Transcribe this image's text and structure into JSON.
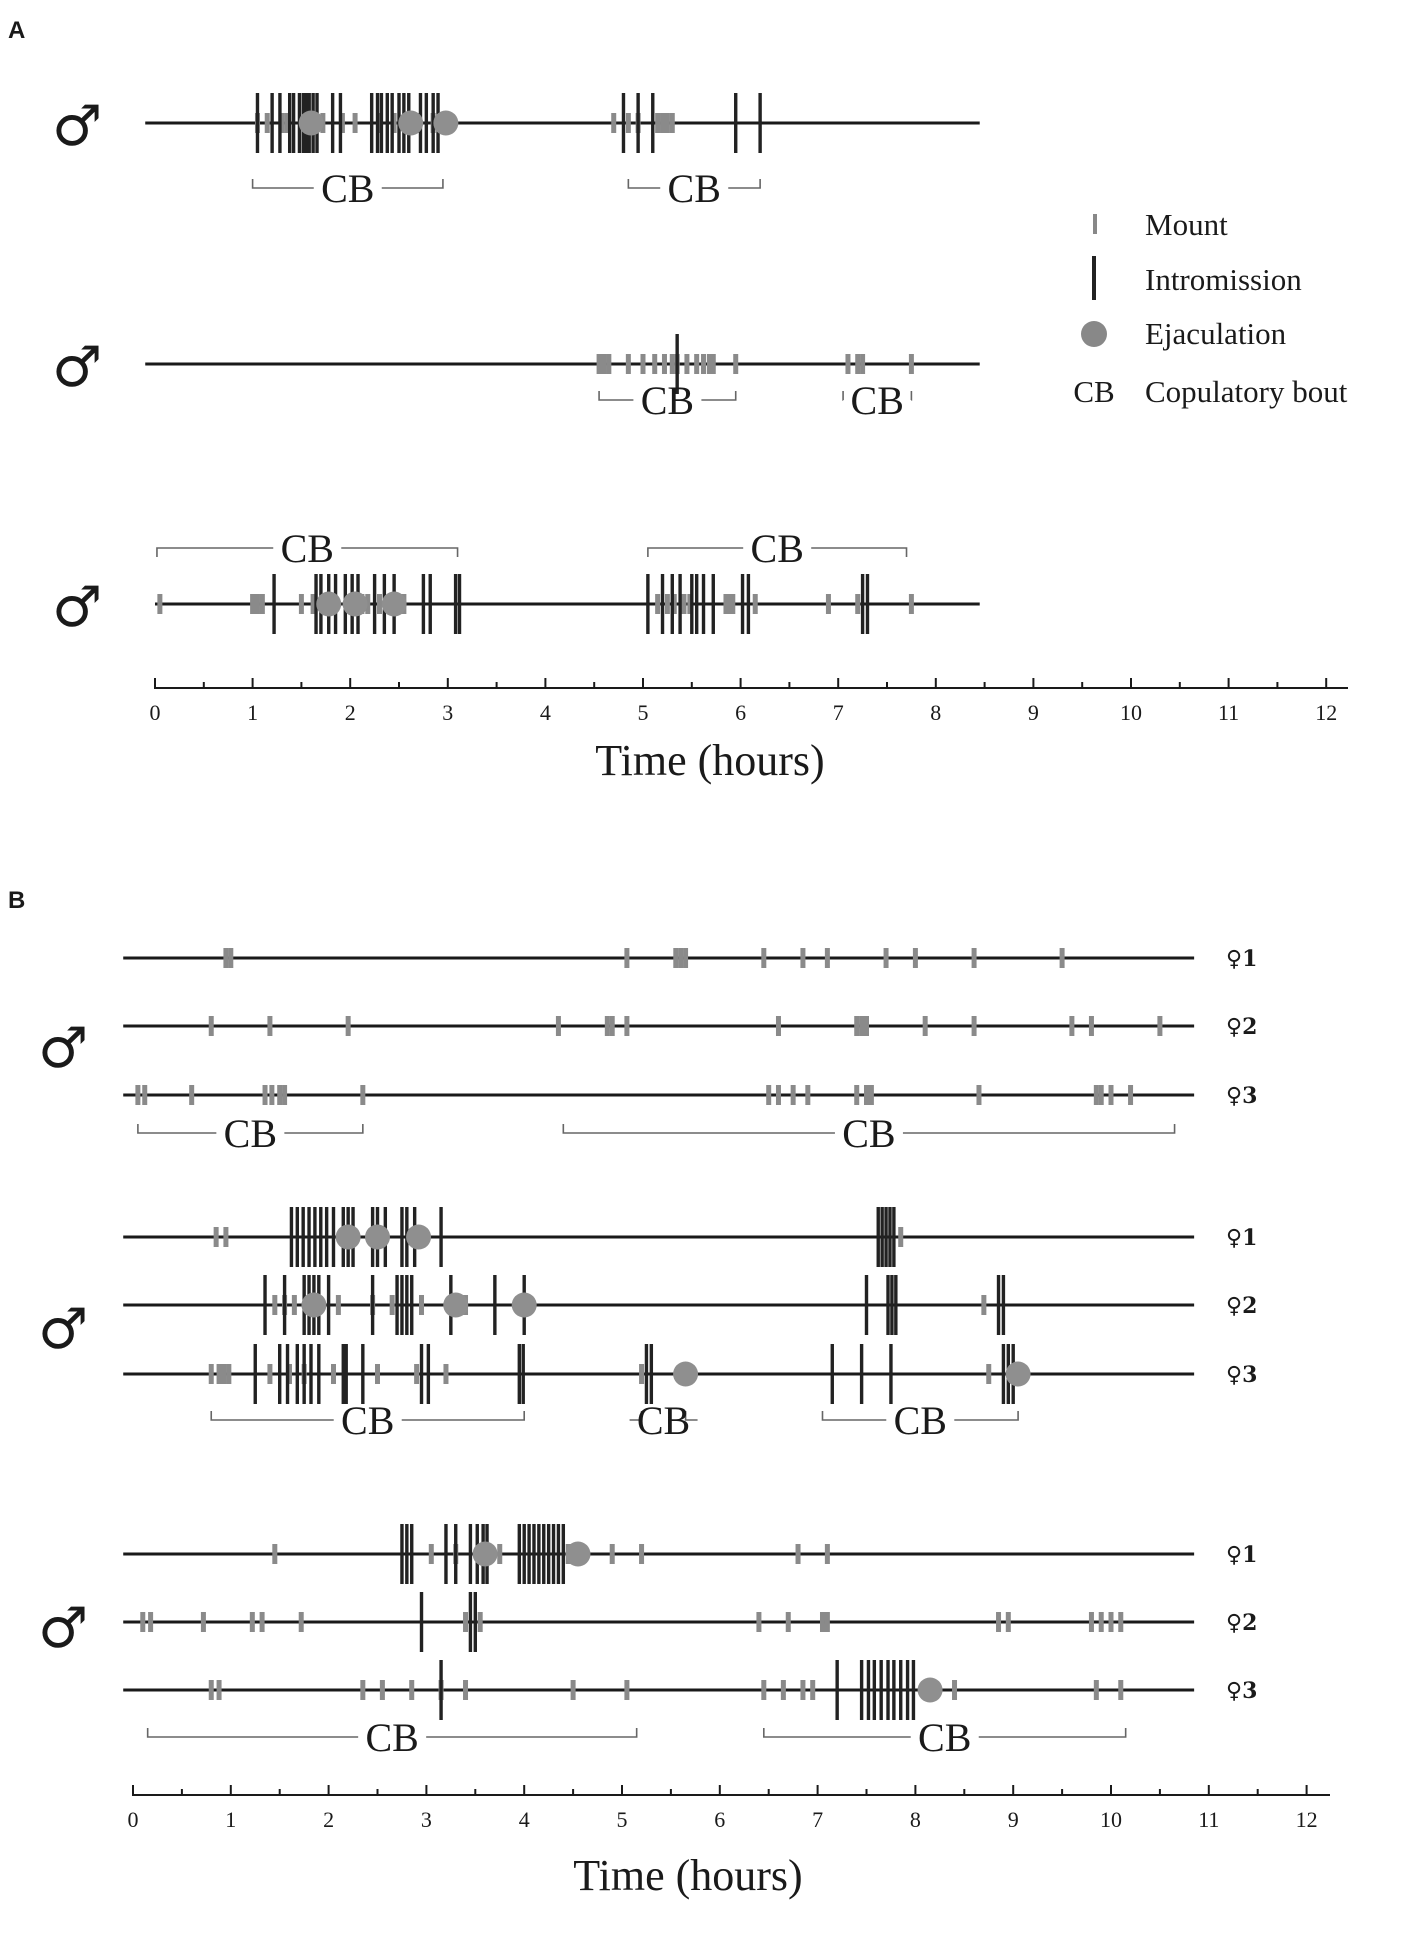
{
  "chart_data": {
    "type": "scatter",
    "xlabel": "Time (hours)",
    "legend": {
      "placement": "right",
      "items": [
        {
          "symbol": "Mount",
          "label": "Mount",
          "mark": "short-tick",
          "color": "#888888"
        },
        {
          "symbol": "Intromission",
          "label": "Intromission",
          "mark": "long-bar",
          "color": "#222222"
        },
        {
          "symbol": "Ejaculation",
          "label": "Ejaculation",
          "mark": "circle",
          "color": "#888888"
        },
        {
          "symbol": "CB",
          "label": "Copulatory bout",
          "mark": "bracket",
          "color": "#555555"
        }
      ]
    },
    "panels": [
      {
        "label": "A",
        "xlim": [
          0,
          12
        ],
        "xticks": [
          0,
          1,
          2,
          3,
          4,
          5,
          6,
          7,
          8,
          9,
          10,
          11,
          12
        ],
        "xlabel": "Time (hours)",
        "rows": [
          {
            "male": "♂",
            "female": "",
            "line": [
              -0.1,
              8.45
            ],
            "mounts": [
              1.05,
              1.15,
              1.3,
              1.35,
              1.72,
              1.92,
              2.05,
              2.3,
              2.45,
              2.7,
              2.85,
              2.95,
              4.7,
              4.85,
              4.95,
              5.15,
              5.2,
              5.25,
              5.3
            ],
            "intromissions": [
              1.05,
              1.2,
              1.28,
              1.38,
              1.42,
              1.48,
              1.52,
              1.55,
              1.58,
              1.62,
              1.66,
              1.82,
              1.9,
              2.22,
              2.28,
              2.32,
              2.38,
              2.43,
              2.5,
              2.55,
              2.6,
              2.72,
              2.78,
              2.85,
              2.9,
              4.8,
              4.95,
              5.1,
              5.95,
              6.2
            ],
            "ejaculations": [
              1.6,
              2.62,
              2.98
            ],
            "bouts": [
              {
                "start": 1.0,
                "end": 2.95
              },
              {
                "start": 4.85,
                "end": 6.2
              }
            ]
          },
          {
            "male": "♂",
            "female": "",
            "line": [
              -0.1,
              8.45
            ],
            "mounts": [
              4.55,
              4.6,
              4.65,
              4.85,
              5.0,
              5.12,
              5.22,
              5.3,
              5.35,
              5.45,
              5.55,
              5.62,
              5.68,
              5.72,
              5.95,
              7.1,
              7.2,
              7.25,
              7.75
            ],
            "intromissions": [
              5.35
            ],
            "ejaculations": [],
            "bouts": [
              {
                "start": 4.55,
                "end": 5.95
              },
              {
                "start": 7.05,
                "end": 7.75
              }
            ]
          },
          {
            "male": "♂",
            "female": "",
            "line": [
              0.0,
              8.45
            ],
            "mounts": [
              0.05,
              1.0,
              1.05,
              1.1,
              1.5,
              1.62,
              1.75,
              2.12,
              2.18,
              2.3,
              2.42,
              2.55,
              5.15,
              5.25,
              5.32,
              5.42,
              5.48,
              5.85,
              5.88,
              5.92,
              6.15,
              6.9,
              7.2,
              7.75
            ],
            "intromissions": [
              1.22,
              1.65,
              1.7,
              1.78,
              1.85,
              1.95,
              2.02,
              2.08,
              2.25,
              2.35,
              2.45,
              2.75,
              2.82,
              3.08,
              3.12,
              5.05,
              5.2,
              5.3,
              5.38,
              5.5,
              5.55,
              5.62,
              5.72,
              6.02,
              6.08,
              7.25,
              7.3
            ],
            "ejaculations": [
              1.78,
              2.05,
              2.45
            ],
            "bouts": [
              {
                "start": 0.02,
                "end": 3.1
              },
              {
                "start": 5.05,
                "end": 7.7
              }
            ]
          }
        ]
      },
      {
        "label": "B",
        "xlim": [
          0,
          12
        ],
        "xticks": [
          0,
          1,
          2,
          3,
          4,
          5,
          6,
          7,
          8,
          9,
          10,
          11,
          12
        ],
        "xlabel": "Time (hours)",
        "rows": [
          {
            "male": "♂",
            "female": "♀1",
            "line": [
              -0.1,
              10.85
            ],
            "mounts": [
              0.95,
              1.0,
              5.05,
              5.55,
              5.6,
              5.65,
              6.45,
              6.85,
              7.1,
              7.7,
              8.0,
              8.6,
              9.5
            ],
            "intromissions": [],
            "ejaculations": [],
            "bouts": []
          },
          {
            "male": "♂",
            "female": "♀2",
            "line": [
              -0.1,
              10.85
            ],
            "mounts": [
              0.8,
              1.4,
              2.2,
              4.35,
              4.85,
              4.9,
              5.05,
              6.6,
              7.4,
              7.45,
              7.5,
              8.1,
              8.6,
              9.6,
              9.8,
              10.5
            ],
            "intromissions": [],
            "ejaculations": [],
            "bouts": []
          },
          {
            "male": "♂",
            "female": "♀3",
            "line": [
              -0.1,
              10.85
            ],
            "mounts": [
              0.05,
              0.12,
              0.6,
              1.35,
              1.42,
              1.5,
              1.55,
              2.35,
              6.5,
              6.6,
              6.75,
              6.9,
              7.4,
              7.5,
              7.55,
              8.65,
              9.85,
              9.9,
              10.0,
              10.2
            ],
            "intromissions": [],
            "ejaculations": [],
            "bouts": [
              {
                "start": 0.05,
                "end": 2.35
              },
              {
                "start": 4.4,
                "end": 10.65
              }
            ]
          },
          {
            "male": "♂",
            "female": "♀1",
            "line": [
              -0.1,
              10.85
            ],
            "mounts": [
              0.85,
              0.95,
              7.85
            ],
            "intromissions": [
              1.62,
              1.68,
              1.74,
              1.8,
              1.86,
              1.92,
              1.98,
              2.05,
              2.15,
              2.2,
              2.25,
              2.45,
              2.5,
              2.58,
              2.75,
              2.8,
              2.88,
              3.15,
              7.62,
              7.66,
              7.7,
              7.74,
              7.78
            ],
            "ejaculations": [
              2.2,
              2.5,
              2.92
            ],
            "bouts": []
          },
          {
            "male": "♂",
            "female": "♀2",
            "line": [
              -0.1,
              10.85
            ],
            "mounts": [
              1.45,
              1.55,
              1.65,
              2.1,
              2.45,
              2.65,
              2.95,
              3.4,
              8.7
            ],
            "intromissions": [
              1.35,
              1.55,
              1.75,
              1.8,
              1.85,
              1.9,
              2.0,
              2.45,
              2.7,
              2.75,
              2.8,
              2.85,
              3.25,
              3.7,
              4.0,
              7.5,
              7.72,
              7.76,
              7.8,
              8.85,
              8.9
            ],
            "ejaculations": [
              1.85,
              3.3,
              4.0
            ],
            "bouts": []
          },
          {
            "male": "♂",
            "female": "♀3",
            "line": [
              -0.1,
              10.85
            ],
            "mounts": [
              0.8,
              0.88,
              0.93,
              0.98,
              1.4,
              1.6,
              1.75,
              2.05,
              2.5,
              2.9,
              3.2,
              5.2,
              8.75
            ],
            "intromissions": [
              1.25,
              1.5,
              1.58,
              1.68,
              1.75,
              1.82,
              1.9,
              2.15,
              2.18,
              2.35,
              2.95,
              3.02,
              3.95,
              3.99,
              5.25,
              5.3,
              7.15,
              7.45,
              7.75,
              8.9,
              8.95,
              9.0
            ],
            "ejaculations": [
              5.65,
              9.05
            ],
            "bouts": [
              {
                "start": 0.8,
                "end": 4.0
              },
              {
                "start": 5.2,
                "end": 5.65
              },
              {
                "start": 7.05,
                "end": 9.05
              }
            ]
          },
          {
            "male": "♂",
            "female": "♀1",
            "line": [
              -0.1,
              10.85
            ],
            "mounts": [
              1.45,
              3.05,
              3.3,
              3.75,
              4.45,
              4.6,
              4.9,
              5.2,
              6.8,
              7.1
            ],
            "intromissions": [
              2.75,
              2.8,
              2.85,
              3.2,
              3.3,
              3.45,
              3.52,
              3.58,
              3.62,
              3.95,
              4.0,
              4.05,
              4.1,
              4.15,
              4.2,
              4.25,
              4.3,
              4.35,
              4.4
            ],
            "ejaculations": [
              3.6,
              4.55
            ],
            "bouts": []
          },
          {
            "male": "♂",
            "female": "♀2",
            "line": [
              -0.1,
              10.85
            ],
            "mounts": [
              0.1,
              0.18,
              0.72,
              1.22,
              1.32,
              1.72,
              3.4,
              3.55,
              6.4,
              6.7,
              7.05,
              7.1,
              8.85,
              8.95,
              9.8,
              9.9,
              10.0,
              10.1
            ],
            "intromissions": [
              2.95,
              3.45,
              3.5
            ],
            "ejaculations": [],
            "bouts": []
          },
          {
            "male": "♂",
            "female": "♀3",
            "line": [
              -0.1,
              10.85
            ],
            "mounts": [
              0.8,
              0.88,
              2.35,
              2.55,
              2.85,
              3.15,
              3.4,
              4.5,
              5.05,
              6.45,
              6.65,
              6.85,
              6.95,
              8.4,
              9.85,
              10.1
            ],
            "intromissions": [
              3.15,
              7.2,
              7.45,
              7.52,
              7.58,
              7.65,
              7.72,
              7.78,
              7.85,
              7.92,
              7.98
            ],
            "ejaculations": [
              8.15
            ],
            "bouts": [
              {
                "start": 0.15,
                "end": 5.15
              },
              {
                "start": 6.45,
                "end": 10.15
              }
            ]
          }
        ]
      }
    ]
  }
}
